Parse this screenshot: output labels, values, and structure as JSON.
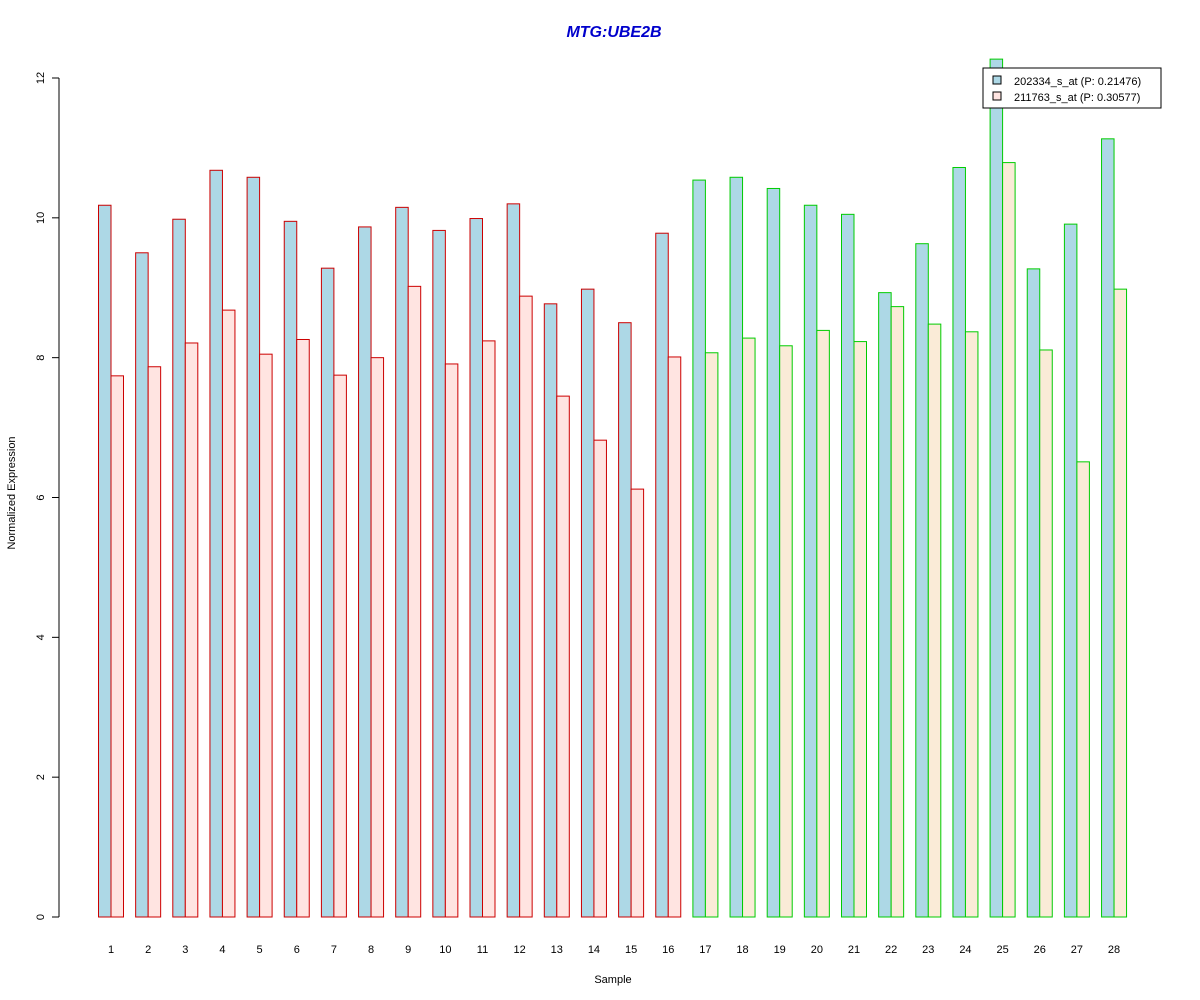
{
  "colors": {
    "title": "#0000cc",
    "series1_fill": "#add8e6",
    "series2_fill_group1": "#ffe4e1",
    "series2_fill_group2": "#faebd7",
    "group1_border": "#cc0000",
    "group2_border": "#00cc00",
    "axis": "#000000"
  },
  "chart_data": {
    "type": "bar",
    "title": "MTG:UBE2B",
    "xlabel": "Sample",
    "ylabel": "Normalized Expression",
    "ylim": [
      0,
      12
    ],
    "yticks": [
      0,
      2,
      4,
      6,
      8,
      10,
      12
    ],
    "grid": false,
    "legend_position": "top-right",
    "categories": [
      "1",
      "2",
      "3",
      "4",
      "5",
      "6",
      "7",
      "8",
      "9",
      "10",
      "11",
      "12",
      "13",
      "14",
      "15",
      "16",
      "17",
      "18",
      "19",
      "20",
      "21",
      "22",
      "23",
      "24",
      "25",
      "26",
      "27",
      "28"
    ],
    "group1_samples": 16,
    "series": [
      {
        "name": "202334_s_at (P: 0.21476)",
        "values": [
          10.18,
          9.5,
          9.98,
          10.68,
          10.58,
          9.95,
          9.28,
          9.87,
          10.15,
          9.82,
          9.99,
          10.2,
          8.77,
          8.98,
          8.5,
          9.78,
          10.54,
          10.58,
          10.42,
          10.18,
          10.05,
          8.93,
          9.63,
          10.72,
          12.27,
          9.27,
          9.91,
          11.13
        ]
      },
      {
        "name": "211763_s_at (P: 0.30577)",
        "values": [
          7.74,
          7.87,
          8.21,
          8.68,
          8.05,
          8.26,
          7.75,
          8.0,
          9.02,
          7.91,
          8.24,
          8.88,
          7.45,
          6.82,
          6.12,
          8.01,
          8.07,
          8.28,
          8.17,
          8.39,
          8.23,
          8.73,
          8.48,
          8.37,
          10.79,
          8.11,
          6.51,
          8.98
        ]
      }
    ]
  }
}
